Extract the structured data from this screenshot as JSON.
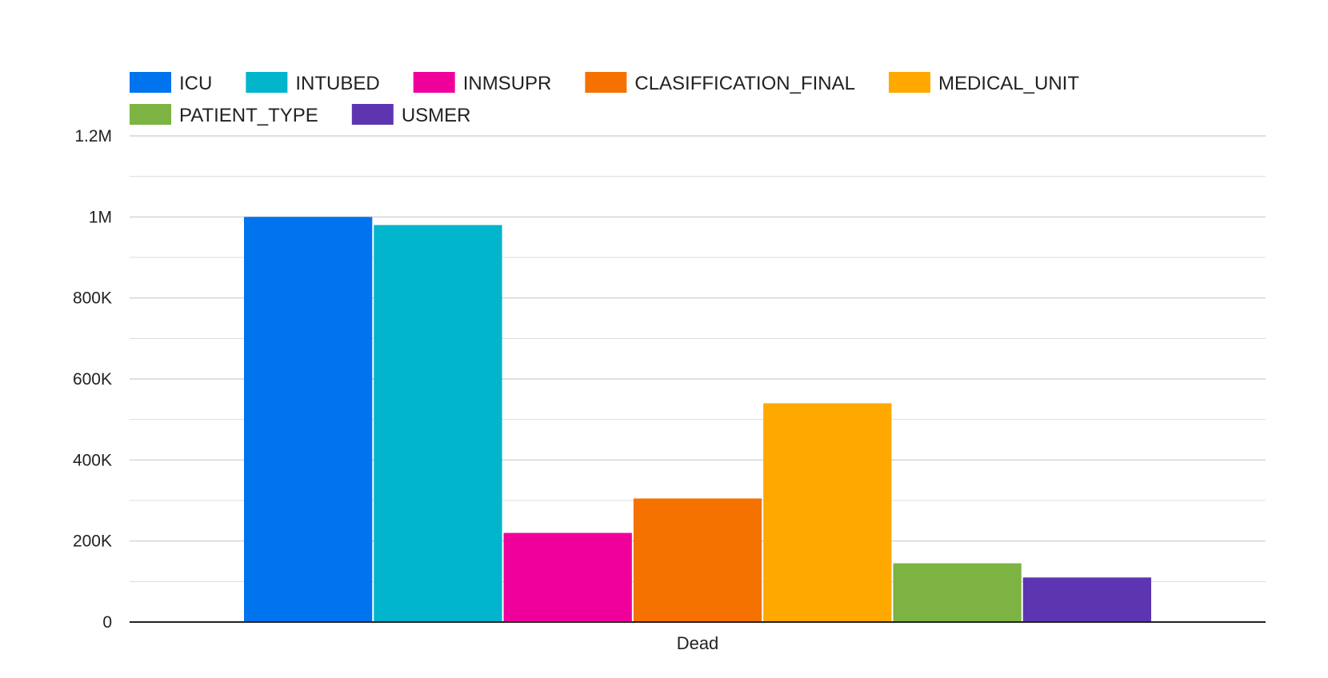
{
  "chart_data": {
    "type": "bar",
    "categories": [
      "Dead"
    ],
    "series": [
      {
        "name": "ICU",
        "values": [
          1000000
        ],
        "color": "#0073EE"
      },
      {
        "name": "INTUBED",
        "values": [
          980000
        ],
        "color": "#00B5CC"
      },
      {
        "name": "INMSUPR",
        "values": [
          220000
        ],
        "color": "#F0009A"
      },
      {
        "name": "CLASIFFICATION_FINAL",
        "values": [
          305000
        ],
        "color": "#F57200"
      },
      {
        "name": "MEDICAL_UNIT",
        "values": [
          540000
        ],
        "color": "#FFA800"
      },
      {
        "name": "PATIENT_TYPE",
        "values": [
          145000
        ],
        "color": "#7CB342"
      },
      {
        "name": "USMER",
        "values": [
          110000
        ],
        "color": "#5E35B1"
      }
    ],
    "title": "",
    "xlabel": "",
    "ylabel": "",
    "ylim": [
      0,
      1200000
    ],
    "y_ticks": [
      {
        "value": 0,
        "label": "0"
      },
      {
        "value": 200000,
        "label": "200K"
      },
      {
        "value": 400000,
        "label": "400K"
      },
      {
        "value": 600000,
        "label": "600K"
      },
      {
        "value": 800000,
        "label": "800K"
      },
      {
        "value": 1000000,
        "label": "1M"
      },
      {
        "value": 1200000,
        "label": "1.2M"
      }
    ],
    "grid": true,
    "legend_position": "top-left"
  }
}
